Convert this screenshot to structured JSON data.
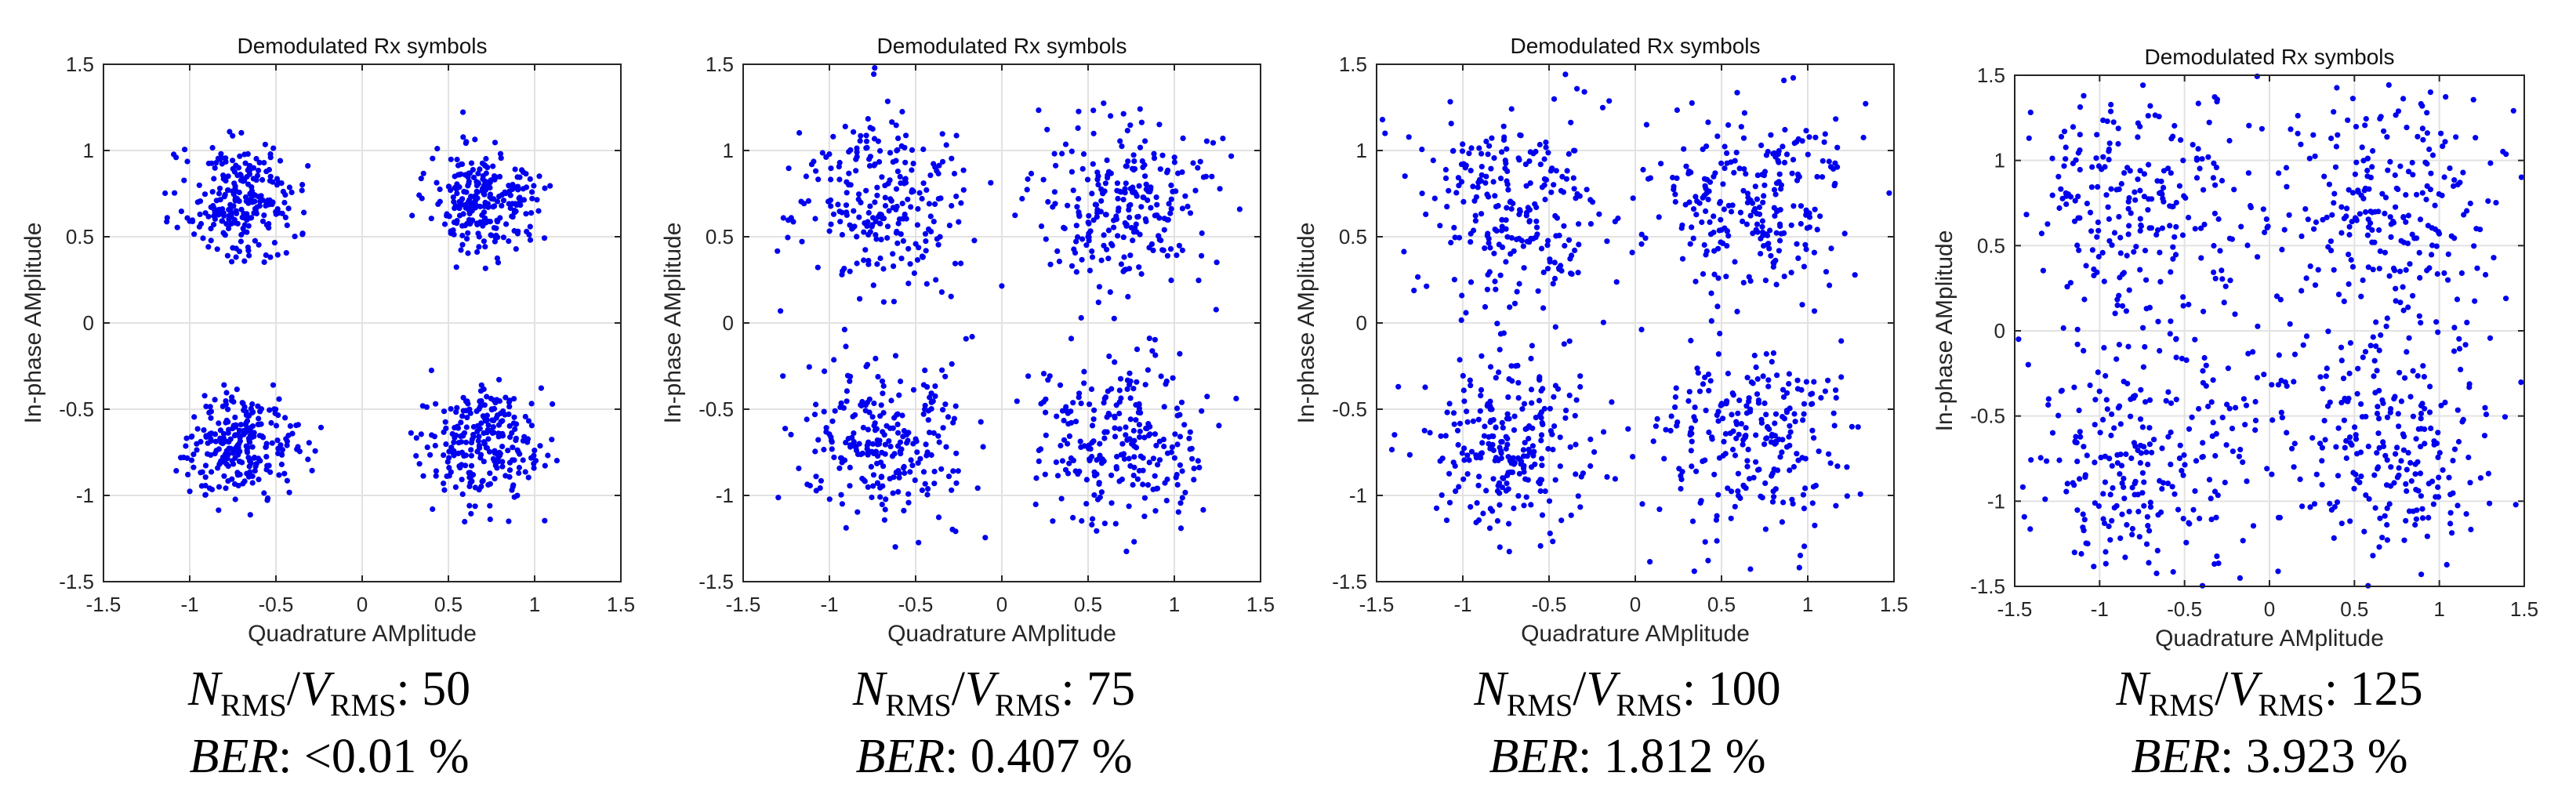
{
  "chart_data": [
    {
      "type": "scatter",
      "title": "Demodulated Rx symbols",
      "xlabel": "Quadrature AMplitude",
      "ylabel": "In-phase AMplitude",
      "xlim": [
        -1.5,
        1.5
      ],
      "ylim": [
        -1.5,
        1.5
      ],
      "xticks": [
        "-1.5",
        "-1",
        "-0.5",
        "0",
        "0.5",
        "1",
        "1.5"
      ],
      "yticks": [
        "-1.5",
        "-1",
        "-0.5",
        "0",
        "0.5",
        "1",
        "1.5"
      ],
      "grid": true,
      "marker_color": "#0000ee",
      "constellation_points": [
        [
          -0.7,
          0.7
        ],
        [
          0.7,
          0.7
        ],
        [
          -0.7,
          -0.7
        ],
        [
          0.7,
          -0.7
        ]
      ],
      "noise_spread": 0.16,
      "points_per_cluster": 250,
      "caption": {
        "label_n": "N",
        "label_v": "V",
        "sub": "RMS",
        "value": "50",
        "ber_label": "BER",
        "ber_value": "<0.01 %"
      }
    },
    {
      "type": "scatter",
      "title": "Demodulated Rx symbols",
      "xlabel": "Quadrature AMplitude",
      "ylabel": "In-phase AMplitude",
      "xlim": [
        -1.5,
        1.5
      ],
      "ylim": [
        -1.5,
        1.5
      ],
      "xticks": [
        "-1.5",
        "-1",
        "-0.5",
        "0",
        "0.5",
        "1",
        "1.5"
      ],
      "yticks": [
        "-1.5",
        "-1",
        "-0.5",
        "0",
        "0.5",
        "1",
        "1.5"
      ],
      "grid": true,
      "marker_color": "#0000ee",
      "constellation_points": [
        [
          -0.7,
          0.7
        ],
        [
          0.7,
          0.7
        ],
        [
          -0.7,
          -0.7
        ],
        [
          0.7,
          -0.7
        ]
      ],
      "noise_spread": 0.24,
      "points_per_cluster": 250,
      "caption": {
        "label_n": "N",
        "label_v": "V",
        "sub": "RMS",
        "value": "75",
        "ber_label": "BER",
        "ber_value": "0.407 %"
      }
    },
    {
      "type": "scatter",
      "title": "Demodulated Rx symbols",
      "xlabel": "Quadrature AMplitude",
      "ylabel": "In-phase AMplitude",
      "xlim": [
        -1.5,
        1.5
      ],
      "ylim": [
        -1.5,
        1.5
      ],
      "xticks": [
        "-1.5",
        "-1",
        "-0.5",
        "0",
        "0.5",
        "1",
        "1.5"
      ],
      "yticks": [
        "-1.5",
        "-1",
        "-0.5",
        "0",
        "0.5",
        "1",
        "1.5"
      ],
      "grid": true,
      "marker_color": "#0000ee",
      "constellation_points": [
        [
          -0.7,
          0.7
        ],
        [
          0.7,
          0.7
        ],
        [
          -0.7,
          -0.7
        ],
        [
          0.7,
          -0.7
        ]
      ],
      "noise_spread": 0.28,
      "points_per_cluster": 250,
      "caption": {
        "label_n": "N",
        "label_v": "V",
        "sub": "RMS",
        "value": "100",
        "ber_label": "BER",
        "ber_value": "1.812 %"
      }
    },
    {
      "type": "scatter",
      "title": "Demodulated Rx symbols",
      "xlabel": "Quadrature AMplitude",
      "ylabel": "In-phase AMplitude",
      "xlim": [
        -1.5,
        1.5
      ],
      "ylim": [
        -1.5,
        1.5
      ],
      "xticks": [
        "-1.5",
        "-1",
        "-0.5",
        "0",
        "0.5",
        "1",
        "1.5"
      ],
      "yticks": [
        "-1.5",
        "-1",
        "-0.5",
        "0",
        "0.5",
        "1",
        "1.5"
      ],
      "grid": true,
      "marker_color": "#0000ee",
      "constellation_points": [
        [
          -0.7,
          0.7
        ],
        [
          0.7,
          0.7
        ],
        [
          -0.7,
          -0.7
        ],
        [
          0.7,
          -0.7
        ]
      ],
      "noise_spread": 0.36,
      "points_per_cluster": 250,
      "caption": {
        "label_n": "N",
        "label_v": "V",
        "sub": "RMS",
        "value": "125",
        "ber_label": "BER",
        "ber_value": "3.923 %"
      }
    }
  ]
}
